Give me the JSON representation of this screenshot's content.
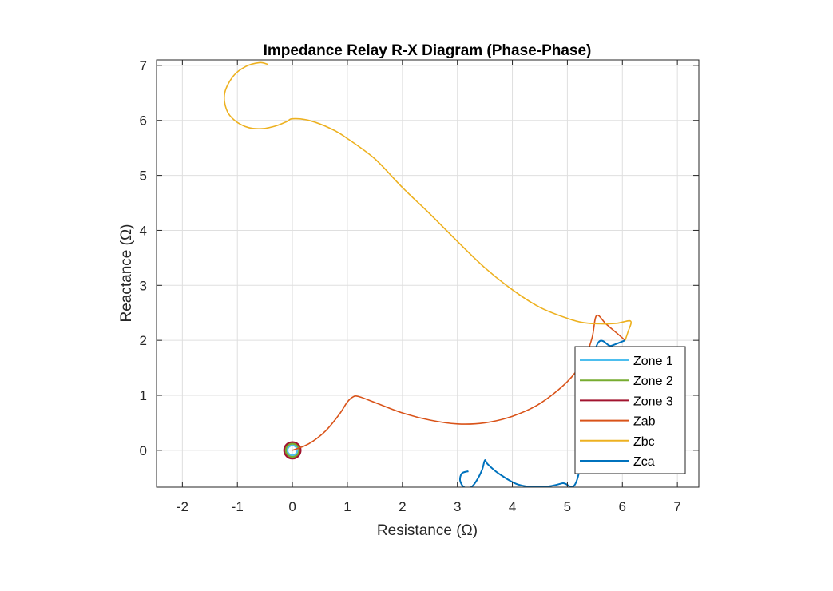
{
  "chart_data": {
    "type": "line",
    "title": "Impedance Relay R-X Diagram (Phase-Phase)",
    "xlabel": "Resistance (Ω)",
    "ylabel": "Reactance (Ω)",
    "xlim": [
      -2.47,
      7.39
    ],
    "ylim": [
      -0.67,
      7.1
    ],
    "xticks": [
      -2,
      -1,
      0,
      1,
      2,
      3,
      4,
      5,
      6,
      7
    ],
    "yticks": [
      0,
      1,
      2,
      3,
      4,
      5,
      6,
      7
    ],
    "xtick_labels": [
      "-2",
      "-1",
      "0",
      "1",
      "2",
      "3",
      "4",
      "5",
      "6",
      "7"
    ],
    "ytick_labels": [
      "0",
      "1",
      "2",
      "3",
      "4",
      "5",
      "6",
      "7"
    ],
    "grid": true,
    "legend_position": "bottom-right",
    "series": [
      {
        "name": "Zone 1",
        "kind": "circle",
        "center": [
          0,
          0
        ],
        "radius": 0.09,
        "color": "#4DBEEE"
      },
      {
        "name": "Zone 2",
        "kind": "circle",
        "center": [
          0,
          0
        ],
        "radius": 0.12,
        "color": "#77AC30"
      },
      {
        "name": "Zone 3",
        "kind": "circle",
        "center": [
          0,
          0
        ],
        "radius": 0.15,
        "color": "#A2142F"
      },
      {
        "name": "Zab",
        "kind": "line",
        "color": "#D95319",
        "x": [
          0.0,
          0.3,
          0.6,
          0.85,
          1.0,
          1.1,
          1.2,
          1.5,
          2.0,
          2.5,
          3.0,
          3.5,
          4.0,
          4.5,
          5.0,
          5.3,
          5.45,
          5.53,
          5.7,
          5.9,
          6.05
        ],
        "y": [
          0.0,
          0.12,
          0.35,
          0.65,
          0.88,
          0.97,
          0.98,
          0.87,
          0.68,
          0.55,
          0.48,
          0.5,
          0.62,
          0.85,
          1.25,
          1.65,
          2.05,
          2.45,
          2.3,
          2.13,
          2.0
        ]
      },
      {
        "name": "Zbc",
        "kind": "line",
        "color": "#EDB120",
        "x": [
          -0.45,
          -0.6,
          -0.85,
          -1.08,
          -1.23,
          -1.2,
          -1.05,
          -0.8,
          -0.55,
          -0.3,
          -0.1,
          0.0,
          0.3,
          0.7,
          1.0,
          1.5,
          2.0,
          2.5,
          3.0,
          3.5,
          4.0,
          4.5,
          5.0,
          5.3,
          5.6,
          5.9,
          6.15,
          6.1,
          6.05
        ],
        "y": [
          7.02,
          7.05,
          6.98,
          6.8,
          6.5,
          6.2,
          6.0,
          5.87,
          5.85,
          5.9,
          5.98,
          6.03,
          6.0,
          5.85,
          5.67,
          5.3,
          4.78,
          4.3,
          3.8,
          3.32,
          2.92,
          2.6,
          2.4,
          2.32,
          2.3,
          2.31,
          2.35,
          2.15,
          2.0
        ]
      },
      {
        "name": "Zca",
        "kind": "line",
        "color": "#0072BD",
        "x": [
          6.05,
          5.8,
          5.5,
          5.2,
          4.9,
          4.5,
          4.1,
          3.75,
          3.55,
          3.5,
          3.45,
          3.35,
          3.25,
          3.12,
          3.05,
          3.08,
          3.2
        ],
        "y": [
          2.0,
          1.9,
          1.8,
          -0.45,
          -0.6,
          -0.67,
          -0.62,
          -0.42,
          -0.25,
          -0.18,
          -0.35,
          -0.55,
          -0.67,
          -0.67,
          -0.55,
          -0.42,
          -0.38
        ]
      }
    ]
  }
}
